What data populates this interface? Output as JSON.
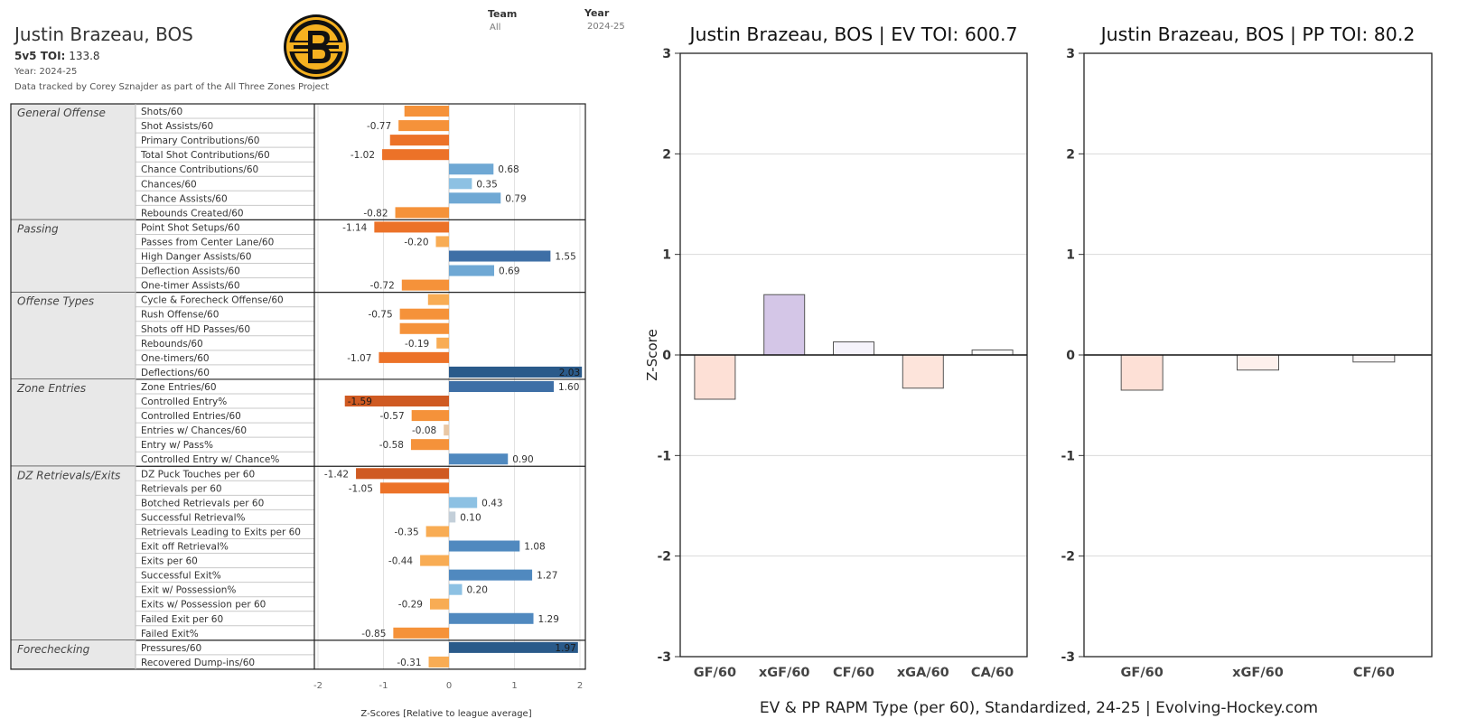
{
  "header": {
    "player": "Justin Brazeau, BOS",
    "toi_label": "5v5 TOI:",
    "toi_value": "133.8",
    "year_line": "Year: 2024-25",
    "source": "Data tracked by Corey Sznajder as part of the All Three Zones Project"
  },
  "filters": {
    "team_label": "Team",
    "team_value": "All",
    "year_label": "Year",
    "year_value": "2024-25"
  },
  "footer": "EV & PP RAPM Type (per 60), Standardized, 24-25    |    Evolving-Hockey.com",
  "chart_data": [
    {
      "type": "bar",
      "orientation": "horizontal",
      "xlabel": "Z-Scores [Relative to league average]",
      "xlim": [
        -2,
        2
      ],
      "xticks": [
        "-2",
        "-1",
        "0",
        "1",
        "2"
      ],
      "groups": [
        {
          "name": "General Offense",
          "metrics": [
            {
              "label": "Shots/60",
              "value": -0.68,
              "show": false
            },
            {
              "label": "Shot Assists/60",
              "value": -0.77,
              "show": true
            },
            {
              "label": "Primary Contributions/60",
              "value": -0.9,
              "show": false
            },
            {
              "label": "Total Shot Contributions/60",
              "value": -1.02,
              "show": true
            },
            {
              "label": "Chance Contributions/60",
              "value": 0.68,
              "show": true
            },
            {
              "label": "Chances/60",
              "value": 0.35,
              "show": true
            },
            {
              "label": "Chance Assists/60",
              "value": 0.79,
              "show": true
            },
            {
              "label": "Rebounds Created/60",
              "value": -0.82,
              "show": true
            }
          ]
        },
        {
          "name": "Passing",
          "metrics": [
            {
              "label": "Point Shot Setups/60",
              "value": -1.14,
              "show": true
            },
            {
              "label": "Passes from Center Lane/60",
              "value": -0.2,
              "text": "-0.20",
              "show": true
            },
            {
              "label": "High Danger Assists/60",
              "value": 1.55,
              "show": true
            },
            {
              "label": "Deflection Assists/60",
              "value": 0.69,
              "show": true
            },
            {
              "label": "One-timer Assists/60",
              "value": -0.72,
              "show": true
            }
          ]
        },
        {
          "name": "Offense Types",
          "metrics": [
            {
              "label": "Cycle & Forecheck Offense/60",
              "value": -0.32,
              "show": false
            },
            {
              "label": "Rush Offense/60",
              "value": -0.75,
              "show": true
            },
            {
              "label": "Shots off HD Passes/60",
              "value": -0.75,
              "show": false
            },
            {
              "label": "Rebounds/60",
              "value": -0.19,
              "show": true
            },
            {
              "label": "One-timers/60",
              "value": -1.07,
              "show": true
            },
            {
              "label": "Deflections/60",
              "value": 2.03,
              "show": true,
              "inside": true
            }
          ]
        },
        {
          "name": "Zone Entries",
          "metrics": [
            {
              "label": "Zone Entries/60",
              "value": 1.6,
              "text": "1.60",
              "show": true
            },
            {
              "label": "Controlled Entry%",
              "value": -1.59,
              "show": true,
              "inside": true
            },
            {
              "label": "Controlled Entries/60",
              "value": -0.57,
              "show": true
            },
            {
              "label": "Entries w/ Chances/60",
              "value": -0.08,
              "show": true
            },
            {
              "label": "Entry w/ Pass%",
              "value": -0.58,
              "show": true
            },
            {
              "label": "Controlled Entry w/ Chance%",
              "value": 0.9,
              "text": "0.90",
              "show": true
            }
          ]
        },
        {
          "name": "DZ Retrievals/Exits",
          "metrics": [
            {
              "label": "DZ Puck Touches per 60",
              "value": -1.42,
              "show": true
            },
            {
              "label": "Retrievals per 60",
              "value": -1.05,
              "show": true
            },
            {
              "label": "Botched Retrievals per 60",
              "value": 0.43,
              "show": true
            },
            {
              "label": "Successful Retrieval%",
              "value": 0.1,
              "text": "0.10",
              "show": true
            },
            {
              "label": "Retrievals Leading to Exits per 60",
              "value": -0.35,
              "show": true
            },
            {
              "label": "Exit off Retrieval%",
              "value": 1.08,
              "show": true
            },
            {
              "label": "Exits per 60",
              "value": -0.44,
              "show": true
            },
            {
              "label": "Successful Exit%",
              "value": 1.27,
              "show": true
            },
            {
              "label": "Exit w/ Possession%",
              "value": 0.2,
              "text": "0.20",
              "show": true
            },
            {
              "label": "Exits w/ Possession per 60",
              "value": -0.29,
              "show": true
            },
            {
              "label": "Failed Exit per 60",
              "value": 1.29,
              "show": true
            },
            {
              "label": "Failed Exit%",
              "value": -0.85,
              "show": true
            }
          ]
        },
        {
          "name": "Forechecking",
          "metrics": [
            {
              "label": "Pressures/60",
              "value": 1.97,
              "show": true,
              "inside": true
            },
            {
              "label": "Recovered Dump-ins/60",
              "value": -0.31,
              "show": true
            }
          ]
        }
      ]
    },
    {
      "type": "bar",
      "title": "Justin Brazeau, BOS  |  EV TOI: 600.7",
      "ylabel": "Z-Score",
      "ylim": [
        -3,
        3
      ],
      "yticks": [
        "-3",
        "-2",
        "-1",
        "0",
        "1",
        "2",
        "3"
      ],
      "categories": [
        "GF/60",
        "xGF/60",
        "CF/60",
        "xGA/60",
        "CA/60"
      ],
      "values": [
        -0.44,
        0.6,
        0.13,
        -0.33,
        0.05
      ],
      "colors": [
        "#fde0d6",
        "#d4c6e7",
        "#f5f3fb",
        "#fde4db",
        "#fdfdfd"
      ]
    },
    {
      "type": "bar",
      "title": "Justin Brazeau, BOS  |  PP TOI: 80.2",
      "ylim": [
        -3,
        3
      ],
      "yticks": [
        "-3",
        "-2",
        "-1",
        "0",
        "1",
        "2",
        "3"
      ],
      "categories": [
        "GF/60",
        "xGF/60",
        "CF/60"
      ],
      "values": [
        -0.35,
        -0.15,
        -0.07
      ],
      "colors": [
        "#fde0d6",
        "#fdf0ec",
        "#f9f5f5"
      ]
    }
  ]
}
